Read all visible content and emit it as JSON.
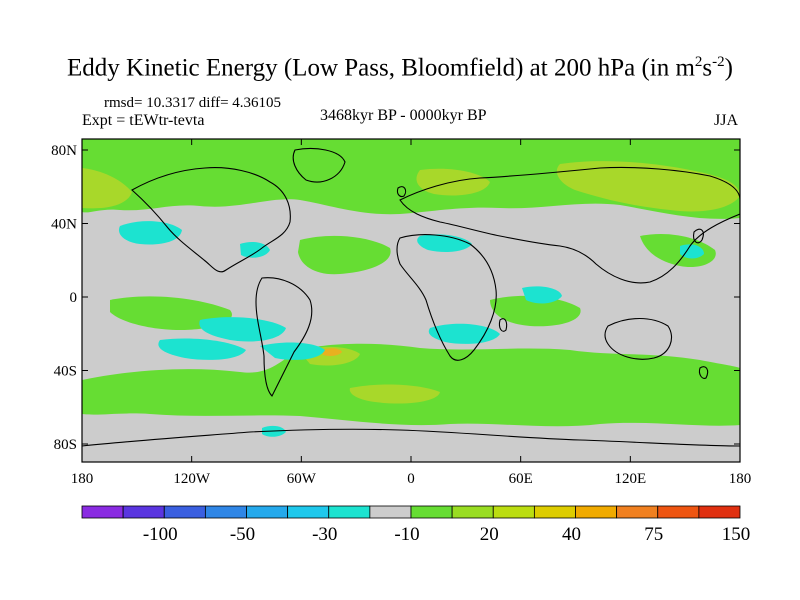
{
  "title": {
    "main": "Eddy Kinetic Energy (Low Pass, Bloomfield) at 200 hPa (in m",
    "sup1": "2",
    "mid": "s",
    "sup2": "-2",
    "end": ")"
  },
  "stats": "rmsd= 10.3317 diff= 4.36105",
  "experiment": "Expt = tEWtr-tevta",
  "period": "3468kyr BP - 0000kyr BP",
  "season": "JJA",
  "x_ticks": [
    {
      "value": -180,
      "label": "180"
    },
    {
      "value": -120,
      "label": "120W"
    },
    {
      "value": -60,
      "label": "60W"
    },
    {
      "value": 0,
      "label": "0"
    },
    {
      "value": 60,
      "label": "60E"
    },
    {
      "value": 120,
      "label": "120E"
    },
    {
      "value": 180,
      "label": "180"
    }
  ],
  "y_ticks": [
    {
      "value": 80,
      "label": "80N"
    },
    {
      "value": 40,
      "label": "40N"
    },
    {
      "value": 0,
      "label": "0"
    },
    {
      "value": -40,
      "label": "40S"
    },
    {
      "value": -80,
      "label": "80S"
    }
  ],
  "colorbar": {
    "colors": [
      "#8a2be2",
      "#5a35e0",
      "#3a5fe0",
      "#2f86e6",
      "#25a9ec",
      "#1ec8ec",
      "#1ce3d0",
      "#cccccc",
      "#66dd33",
      "#99dd22",
      "#bbdd11",
      "#ddcc00",
      "#f0aa00",
      "#f08020",
      "#ee5511",
      "#e03010"
    ],
    "labels": [
      {
        "after_box": 2,
        "text": "-100"
      },
      {
        "after_box": 4,
        "text": "-50"
      },
      {
        "after_box": 6,
        "text": "-30"
      },
      {
        "after_box": 8,
        "text": "-10"
      },
      {
        "after_box": 10,
        "text": "20"
      },
      {
        "after_box": 12,
        "text": "40"
      },
      {
        "after_box": 14,
        "text": "75"
      },
      {
        "after_box": 16,
        "text": "150"
      }
    ]
  },
  "colors": {
    "background_field": "#cccccc",
    "positive_low": "#66dd33",
    "positive_mid": "#a8d82a",
    "positive_high": "#e8b020",
    "negative_low": "#1ce3d0",
    "coastline": "#000000"
  }
}
